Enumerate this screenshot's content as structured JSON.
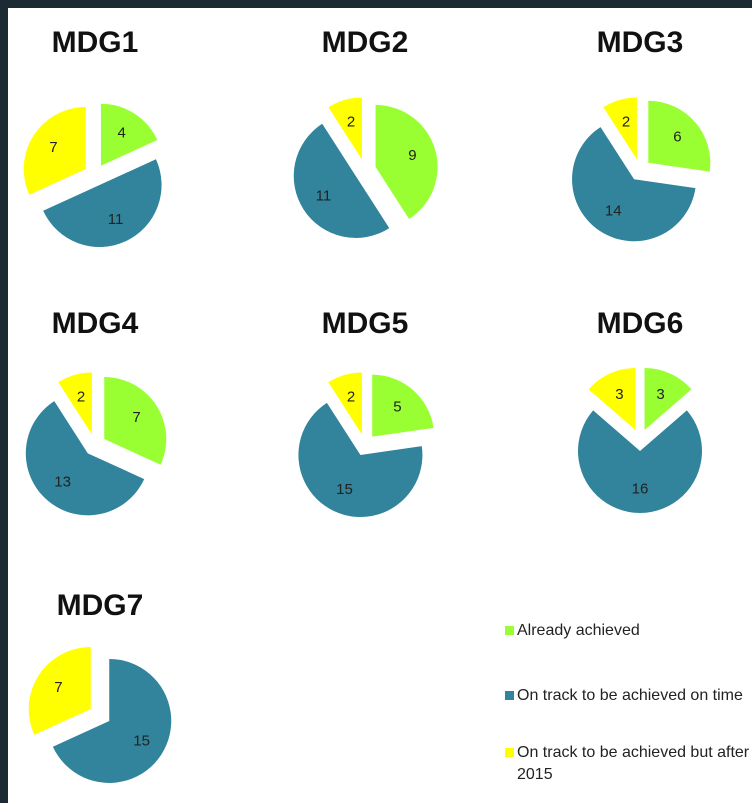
{
  "legend": {
    "categories": [
      "Already achieved",
      "On track to be achieved on time",
      "On track to be achieved but after 2015"
    ],
    "colors": [
      "#99ff33",
      "#31849b",
      "#ffff00"
    ]
  },
  "chart_data": [
    {
      "type": "pie",
      "title": "MDG1",
      "values": [
        4,
        11,
        7
      ]
    },
    {
      "type": "pie",
      "title": "MDG2",
      "values": [
        9,
        11,
        2
      ]
    },
    {
      "type": "pie",
      "title": "MDG3",
      "values": [
        6,
        14,
        2
      ]
    },
    {
      "type": "pie",
      "title": "MDG4",
      "values": [
        7,
        13,
        2
      ]
    },
    {
      "type": "pie",
      "title": "MDG5",
      "values": [
        5,
        15,
        2
      ]
    },
    {
      "type": "pie",
      "title": "MDG6",
      "values": [
        3,
        16,
        3
      ]
    },
    {
      "type": "pie",
      "title": "MDG7",
      "values": [
        null,
        15,
        7
      ]
    }
  ]
}
